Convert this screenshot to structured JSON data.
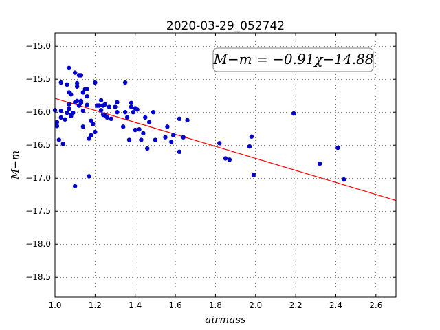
{
  "chart_data": {
    "type": "scatter",
    "title": "2020-03-29_052742",
    "xlabel": "airmass",
    "ylabel": "M−m",
    "xlim": [
      1.0,
      2.7
    ],
    "ylim": [
      -18.8,
      -14.8
    ],
    "xticks": [
      1.0,
      1.2,
      1.4,
      1.6,
      1.8,
      2.0,
      2.2,
      2.4,
      2.6
    ],
    "xtick_labels": [
      "1.0",
      "1.2",
      "1.4",
      "1.6",
      "1.8",
      "2.0",
      "2.2",
      "2.4",
      "2.6"
    ],
    "yticks": [
      -15.0,
      -15.5,
      -16.0,
      -16.5,
      -17.0,
      -17.5,
      -18.0,
      -18.5
    ],
    "ytick_labels": [
      "−15.0",
      "−15.5",
      "−16.0",
      "−16.5",
      "−17.0",
      "−17.5",
      "−18.0",
      "−18.5"
    ],
    "grid": true,
    "annotation": "M−m = −0.91χ−14.88",
    "fit": {
      "slope": -0.91,
      "intercept": -14.88,
      "color": "#ff0000"
    },
    "marker_color": "#0000cc",
    "points": [
      [
        1.0,
        -15.97
      ],
      [
        1.01,
        -16.15
      ],
      [
        1.01,
        -16.21
      ],
      [
        1.02,
        -16.42
      ],
      [
        1.03,
        -16.08
      ],
      [
        1.03,
        -15.98
      ],
      [
        1.03,
        -15.55
      ],
      [
        1.04,
        -16.48
      ],
      [
        1.05,
        -16.11
      ],
      [
        1.06,
        -15.58
      ],
      [
        1.06,
        -16.01
      ],
      [
        1.07,
        -15.95
      ],
      [
        1.07,
        -15.88
      ],
      [
        1.07,
        -15.7
      ],
      [
        1.07,
        -15.33
      ],
      [
        1.08,
        -15.73
      ],
      [
        1.08,
        -16.04
      ],
      [
        1.08,
        -16.06
      ],
      [
        1.09,
        -16.01
      ],
      [
        1.1,
        -15.4
      ],
      [
        1.1,
        -17.12
      ],
      [
        1.1,
        -15.85
      ],
      [
        1.11,
        -15.56
      ],
      [
        1.11,
        -15.61
      ],
      [
        1.11,
        -15.83
      ],
      [
        1.12,
        -15.44
      ],
      [
        1.12,
        -15.9
      ],
      [
        1.13,
        -15.44
      ],
      [
        1.13,
        -15.86
      ],
      [
        1.13,
        -15.83
      ],
      [
        1.14,
        -16.22
      ],
      [
        1.14,
        -15.7
      ],
      [
        1.14,
        -15.98
      ],
      [
        1.15,
        -15.65
      ],
      [
        1.16,
        -15.65
      ],
      [
        1.16,
        -15.76
      ],
      [
        1.16,
        -15.89
      ],
      [
        1.17,
        -16.4
      ],
      [
        1.17,
        -16.97
      ],
      [
        1.18,
        -16.35
      ],
      [
        1.18,
        -16.13
      ],
      [
        1.19,
        -16.18
      ],
      [
        1.2,
        -15.55
      ],
      [
        1.2,
        -16.3
      ],
      [
        1.21,
        -15.9
      ],
      [
        1.22,
        -15.9
      ],
      [
        1.23,
        -15.82
      ],
      [
        1.23,
        -15.97
      ],
      [
        1.24,
        -16.04
      ],
      [
        1.24,
        -15.9
      ],
      [
        1.25,
        -16.05
      ],
      [
        1.25,
        -15.88
      ],
      [
        1.26,
        -16.08
      ],
      [
        1.27,
        -15.92
      ],
      [
        1.28,
        -16.1
      ],
      [
        1.3,
        -15.92
      ],
      [
        1.31,
        -16.0
      ],
      [
        1.31,
        -15.85
      ],
      [
        1.34,
        -16.22
      ],
      [
        1.35,
        -15.55
      ],
      [
        1.35,
        -16.0
      ],
      [
        1.36,
        -16.08
      ],
      [
        1.37,
        -16.42
      ],
      [
        1.38,
        -15.86
      ],
      [
        1.38,
        -15.92
      ],
      [
        1.39,
        -16.0
      ],
      [
        1.4,
        -15.94
      ],
      [
        1.4,
        -16.27
      ],
      [
        1.41,
        -15.96
      ],
      [
        1.42,
        -16.26
      ],
      [
        1.43,
        -16.42
      ],
      [
        1.44,
        -16.32
      ],
      [
        1.45,
        -16.08
      ],
      [
        1.46,
        -16.55
      ],
      [
        1.47,
        -16.15
      ],
      [
        1.49,
        -16.0
      ],
      [
        1.5,
        -16.42
      ],
      [
        1.55,
        -16.38
      ],
      [
        1.56,
        -16.22
      ],
      [
        1.58,
        -16.45
      ],
      [
        1.59,
        -16.35
      ],
      [
        1.62,
        -16.6
      ],
      [
        1.62,
        -16.1
      ],
      [
        1.64,
        -16.38
      ],
      [
        1.66,
        -16.12
      ],
      [
        1.82,
        -16.47
      ],
      [
        1.85,
        -16.7
      ],
      [
        1.87,
        -16.72
      ],
      [
        1.97,
        -16.52
      ],
      [
        1.98,
        -16.37
      ],
      [
        1.99,
        -16.95
      ],
      [
        2.19,
        -16.02
      ],
      [
        2.32,
        -16.78
      ],
      [
        2.41,
        -16.54
      ],
      [
        2.44,
        -17.02
      ]
    ]
  }
}
